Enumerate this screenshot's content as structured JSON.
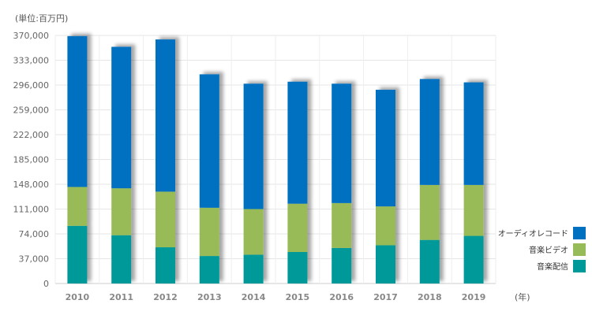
{
  "chart_data": {
    "type": "bar",
    "stacked": true,
    "y_unit_label": "(単位:百万円)",
    "x_unit_label": "(年)",
    "categories": [
      "2010",
      "2011",
      "2012",
      "2013",
      "2014",
      "2015",
      "2016",
      "2017",
      "2018",
      "2019"
    ],
    "series": [
      {
        "name": "音楽配信",
        "color": "#00999a",
        "values": [
          86000,
          72000,
          54000,
          41000,
          43000,
          47000,
          53000,
          57000,
          65000,
          71000
        ]
      },
      {
        "name": "音楽ビデオ",
        "color": "#98bb59",
        "values": [
          58000,
          70000,
          83000,
          72000,
          68000,
          72000,
          67000,
          58000,
          82000,
          76000
        ]
      },
      {
        "name": "オーディオレコード",
        "color": "#0070c0",
        "values": [
          225000,
          211000,
          227000,
          199000,
          187000,
          182000,
          178000,
          174000,
          158000,
          153000
        ]
      }
    ],
    "yticks": [
      0,
      37000,
      74000,
      111000,
      148000,
      185000,
      222000,
      259000,
      296000,
      333000,
      370000
    ],
    "ytick_labels": [
      "0",
      "37,000",
      "74,000",
      "111,000",
      "148,000",
      "185,000",
      "222,000",
      "259,000",
      "296,000",
      "333,000",
      "370,000"
    ],
    "ylim": [
      0,
      370000
    ],
    "grid": true,
    "legend_position": "right"
  }
}
